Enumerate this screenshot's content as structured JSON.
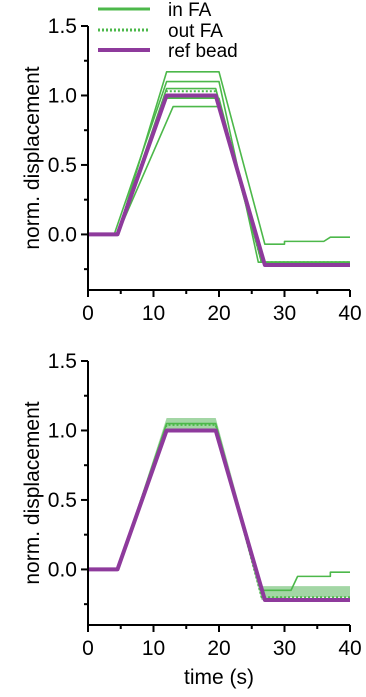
{
  "colors": {
    "in_fa": "#4cb84a",
    "out_fa": "#4cb84a",
    "ref_bead": "#8e3a9c",
    "band": "#7cc47f"
  },
  "chart_data": [
    {
      "type": "line",
      "panel": "top",
      "ylabel": "norm. displacement",
      "xlabel": "",
      "xlim": [
        0,
        40
      ],
      "ylim": [
        -0.4,
        1.5
      ],
      "xticks": [
        "0",
        "10",
        "20",
        "30",
        "40"
      ],
      "yticks": [
        "0.0",
        "0.5",
        "1.0",
        "1.5"
      ],
      "legend": {
        "placement": "top",
        "entries": [
          {
            "label": "in FA",
            "style": "solid"
          },
          {
            "label": "out FA",
            "style": "dotted"
          },
          {
            "label": "ref bead",
            "style": "thick-solid"
          }
        ]
      },
      "series": [
        {
          "name": "ref bead",
          "style": "thick",
          "points": [
            [
              0,
              0
            ],
            [
              4.5,
              0
            ],
            [
              12,
              1.0
            ],
            [
              19.5,
              1.0
            ],
            [
              27,
              -0.22
            ],
            [
              40,
              -0.22
            ]
          ]
        },
        {
          "name": "in FA",
          "style": "solid",
          "points": [
            [
              0,
              0
            ],
            [
              4.5,
              0
            ],
            [
              12,
              1.17
            ],
            [
              20,
              1.17
            ],
            [
              27,
              -0.07
            ],
            [
              30,
              -0.07
            ],
            [
              30,
              -0.05
            ],
            [
              36,
              -0.05
            ],
            [
              37,
              -0.02
            ],
            [
              40,
              -0.02
            ]
          ]
        },
        {
          "name": "in FA",
          "style": "solid",
          "points": [
            [
              0,
              0
            ],
            [
              4,
              0
            ],
            [
              12,
              1.1
            ],
            [
              20,
              1.1
            ],
            [
              26,
              -0.2
            ],
            [
              40,
              -0.2
            ]
          ]
        },
        {
          "name": "in FA",
          "style": "solid",
          "points": [
            [
              0,
              0
            ],
            [
              4.5,
              0
            ],
            [
              12,
              1.05
            ],
            [
              19.5,
              1.05
            ],
            [
              26.5,
              -0.2
            ],
            [
              40,
              -0.2
            ]
          ]
        },
        {
          "name": "in FA",
          "style": "solid",
          "points": [
            [
              0,
              0
            ],
            [
              4.5,
              0
            ],
            [
              12,
              0.98
            ],
            [
              20,
              0.98
            ],
            [
              26.5,
              -0.2
            ],
            [
              40,
              -0.2
            ]
          ]
        },
        {
          "name": "in FA",
          "style": "solid",
          "points": [
            [
              0,
              0
            ],
            [
              4.5,
              0
            ],
            [
              13,
              0.92
            ],
            [
              20,
              0.92
            ],
            [
              26.5,
              -0.2
            ],
            [
              40,
              -0.2
            ]
          ]
        },
        {
          "name": "out FA",
          "style": "dotted",
          "points": [
            [
              0,
              0
            ],
            [
              4.5,
              0
            ],
            [
              12,
              1.03
            ],
            [
              19.5,
              1.03
            ],
            [
              26.5,
              -0.2
            ],
            [
              40,
              -0.2
            ]
          ]
        }
      ]
    },
    {
      "type": "line",
      "panel": "bottom",
      "ylabel": "norm. displacement",
      "xlabel": "time (s)",
      "xlim": [
        0,
        40
      ],
      "ylim": [
        -0.4,
        1.5
      ],
      "xticks": [
        "0",
        "10",
        "20",
        "30",
        "40"
      ],
      "yticks": [
        "0.0",
        "0.5",
        "1.0",
        "1.5"
      ],
      "band": {
        "x": [
          0,
          4.5,
          12,
          19.5,
          26.5,
          27,
          31,
          40
        ],
        "upper": [
          0,
          0,
          1.09,
          1.09,
          -0.12,
          -0.12,
          -0.12,
          -0.12
        ],
        "lower": [
          0,
          0,
          1.0,
          1.0,
          -0.22,
          -0.22,
          -0.2,
          -0.2
        ]
      },
      "series": [
        {
          "name": "ref bead",
          "style": "thick",
          "points": [
            [
              0,
              0
            ],
            [
              4.5,
              0
            ],
            [
              12,
              1.0
            ],
            [
              19.5,
              1.0
            ],
            [
              27,
              -0.22
            ],
            [
              40,
              -0.22
            ]
          ]
        },
        {
          "name": "in FA",
          "style": "solid",
          "points": [
            [
              0,
              0
            ],
            [
              4.5,
              0
            ],
            [
              12,
              1.05
            ],
            [
              19.5,
              1.05
            ],
            [
              26.5,
              -0.15
            ],
            [
              31,
              -0.15
            ],
            [
              32,
              -0.05
            ],
            [
              37,
              -0.05
            ],
            [
              37,
              -0.02
            ],
            [
              40,
              -0.02
            ]
          ]
        },
        {
          "name": "out FA",
          "style": "dotted",
          "points": [
            [
              0,
              0
            ],
            [
              4.5,
              0
            ],
            [
              12,
              1.04
            ],
            [
              19.5,
              1.04
            ],
            [
              26.5,
              -0.2
            ],
            [
              40,
              -0.2
            ]
          ]
        }
      ]
    }
  ]
}
